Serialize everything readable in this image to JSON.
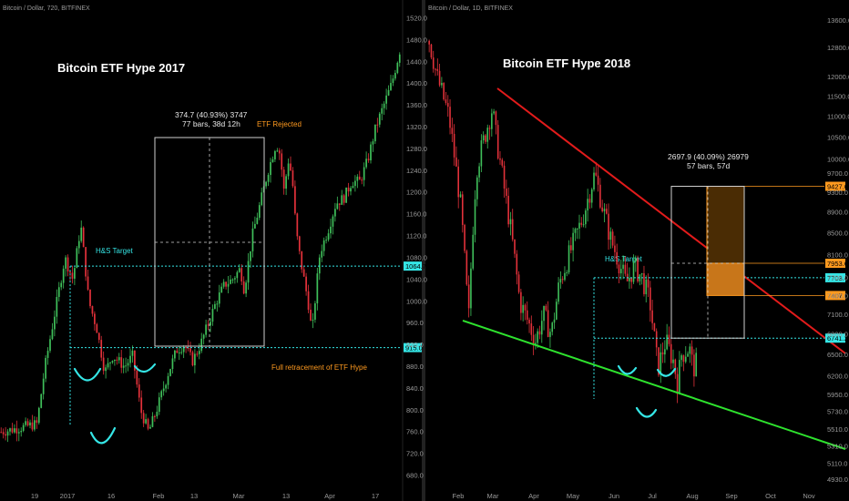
{
  "colors": {
    "background": "#000000",
    "up_candle": "#3fbf5a",
    "down_candle": "#e2313a",
    "cyan": "#35e6e6",
    "orange": "#ff9a1f",
    "red_line": "#e21b1b",
    "green_line": "#2ee22e",
    "box": "#cfcfcf"
  },
  "chart_data": [
    {
      "type": "candlestick",
      "symbol": "Bitcoin / Dollar, 720, BITFINEX",
      "title": "Bitcoin ETF Hype 2017",
      "xlabel": "",
      "ylabel": "",
      "x_ticks": [
        "19",
        "2017",
        "16",
        "Feb",
        "13",
        "Mar",
        "13",
        "Apr",
        "17"
      ],
      "y_ticks": [
        680.0,
        720.0,
        760.0,
        800.0,
        840.0,
        880.0,
        920.0,
        960.0,
        1000.0,
        1040.0,
        1080.0,
        1120.0,
        1160.0,
        1200.0,
        1240.0,
        1280.0,
        1320.0,
        1360.0,
        1400.0,
        1440.0,
        1480.0,
        1520.0
      ],
      "ylim": [
        650,
        1540
      ],
      "close_path": [
        [
          0,
          760
        ],
        [
          0.06,
          770
        ],
        [
          0.09,
          775
        ],
        [
          0.11,
          880
        ],
        [
          0.14,
          1000
        ],
        [
          0.16,
          1080
        ],
        [
          0.18,
          1040
        ],
        [
          0.2,
          1140
        ],
        [
          0.22,
          1000
        ],
        [
          0.24,
          950
        ],
        [
          0.26,
          870
        ],
        [
          0.28,
          900
        ],
        [
          0.31,
          880
        ],
        [
          0.33,
          900
        ],
        [
          0.35,
          800
        ],
        [
          0.37,
          760
        ],
        [
          0.39,
          800
        ],
        [
          0.42,
          870
        ],
        [
          0.44,
          910
        ],
        [
          0.46,
          920
        ],
        [
          0.48,
          890
        ],
        [
          0.5,
          920
        ],
        [
          0.52,
          960
        ],
        [
          0.54,
          1000
        ],
        [
          0.56,
          1030
        ],
        [
          0.58,
          1040
        ],
        [
          0.6,
          1060
        ],
        [
          0.61,
          1020
        ],
        [
          0.63,
          1120
        ],
        [
          0.65,
          1180
        ],
        [
          0.67,
          1240
        ],
        [
          0.69,
          1290
        ],
        [
          0.7,
          1270
        ],
        [
          0.71,
          1200
        ],
        [
          0.72,
          1260
        ],
        [
          0.73,
          1230
        ],
        [
          0.74,
          1130
        ],
        [
          0.75,
          1080
        ],
        [
          0.77,
          1000
        ],
        [
          0.78,
          940
        ],
        [
          0.79,
          1020
        ],
        [
          0.8,
          1090
        ],
        [
          0.82,
          1130
        ],
        [
          0.84,
          1180
        ],
        [
          0.86,
          1190
        ],
        [
          0.88,
          1220
        ],
        [
          0.9,
          1220
        ],
        [
          0.92,
          1260
        ],
        [
          0.94,
          1320
        ],
        [
          0.96,
          1360
        ],
        [
          0.98,
          1400
        ],
        [
          1.0,
          1460
        ]
      ],
      "price_labels": [
        {
          "value": "1064.7",
          "price": 1064.7
        },
        {
          "value": "915.0",
          "price": 915.0
        }
      ],
      "annotations": {
        "hs_target": "H&S Target",
        "etf_rejected": "ETF Rejected",
        "retrace": "Full retracement of ETF Hype",
        "measure_line1": "374.7 (40.93%) 3747",
        "measure_line2": "77 bars, 38d 12h"
      }
    },
    {
      "type": "candlestick",
      "symbol": "Bitcoin / Dollar, 1D, BITFINEX",
      "title": "Bitcoin ETF Hype 2018",
      "xlabel": "",
      "ylabel": "",
      "x_ticks": [
        "Feb",
        "Mar",
        "Apr",
        "May",
        "Jun",
        "Jul",
        "Aug",
        "Sep",
        "Oct",
        "Nov"
      ],
      "y_ticks": [
        4930.0,
        5110.0,
        5310.0,
        5510.0,
        5730.0,
        5950.0,
        6200.0,
        6500.0,
        6800.0,
        7100.0,
        7400.0,
        7700.0,
        8100.0,
        8500.0,
        8900.0,
        9300.0,
        9700.0,
        10000.0,
        10500.0,
        11000.0,
        11500.0,
        12000.0,
        12800.0,
        13600.0
      ],
      "close_path": [
        [
          0.0,
          13000
        ],
        [
          0.02,
          12000
        ],
        [
          0.05,
          11000
        ],
        [
          0.08,
          9000
        ],
        [
          0.1,
          7000
        ],
        [
          0.11,
          8500
        ],
        [
          0.12,
          9800
        ],
        [
          0.14,
          10500
        ],
        [
          0.16,
          11200
        ],
        [
          0.17,
          10500
        ],
        [
          0.19,
          9400
        ],
        [
          0.21,
          8400
        ],
        [
          0.23,
          7300
        ],
        [
          0.25,
          7000
        ],
        [
          0.27,
          6700
        ],
        [
          0.29,
          7100
        ],
        [
          0.31,
          6800
        ],
        [
          0.33,
          7600
        ],
        [
          0.35,
          8000
        ],
        [
          0.37,
          8400
        ],
        [
          0.39,
          8800
        ],
        [
          0.41,
          9400
        ],
        [
          0.42,
          9700
        ],
        [
          0.44,
          9000
        ],
        [
          0.46,
          8400
        ],
        [
          0.48,
          8000
        ],
        [
          0.5,
          7600
        ],
        [
          0.52,
          7900
        ],
        [
          0.54,
          7700
        ],
        [
          0.56,
          7300
        ],
        [
          0.57,
          6800
        ],
        [
          0.58,
          6300
        ],
        [
          0.6,
          6700
        ],
        [
          0.62,
          6400
        ],
        [
          0.63,
          6100
        ],
        [
          0.64,
          6500
        ],
        [
          0.66,
          6600
        ],
        [
          0.67,
          6300
        ],
        [
          0.68,
          6400
        ]
      ],
      "price_labels": [
        {
          "value": "9427.6",
          "price": 9427.6
        },
        {
          "value": "7953.6",
          "price": 7953.6
        },
        {
          "value": "7703.4",
          "price": 7703.4
        },
        {
          "value": "7407.0",
          "price": 7407.0
        },
        {
          "value": "6741.2",
          "price": 6741.2
        }
      ],
      "annotations": {
        "hs_target": "H&S Target",
        "measure_line1": "2697.9 (40.09%) 26979",
        "measure_line2": "57 bars, 57d"
      }
    }
  ]
}
